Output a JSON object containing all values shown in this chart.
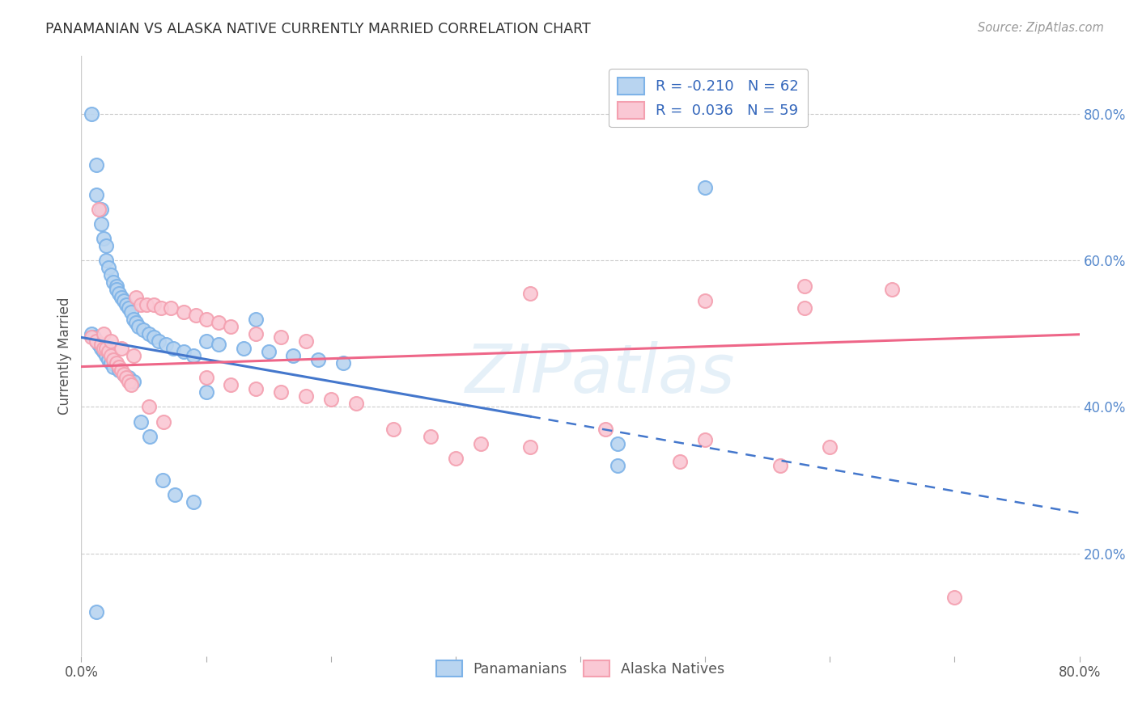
{
  "title": "PANAMANIAN VS ALASKA NATIVE CURRENTLY MARRIED CORRELATION CHART",
  "source": "Source: ZipAtlas.com",
  "ylabel": "Currently Married",
  "xmin": 0.0,
  "xmax": 0.8,
  "ymin": 0.06,
  "ymax": 0.88,
  "legend_blue_label": "R = -0.210   N = 62",
  "legend_pink_label": "R =  0.036   N = 59",
  "blue_color": "#7EB3E8",
  "pink_color": "#F4A0B0",
  "blue_fill": "#B8D4F0",
  "pink_fill": "#FAC8D4",
  "blue_line_color": "#4477CC",
  "pink_line_color": "#EE6688",
  "watermark": "ZIPatlas",
  "blue_line_solid_end": 0.36,
  "blue_line_start_y": 0.495,
  "blue_line_slope": -0.3,
  "pink_line_start_y": 0.455,
  "pink_line_slope": 0.055,
  "blue_x": [
    0.008,
    0.012,
    0.012,
    0.016,
    0.016,
    0.018,
    0.02,
    0.02,
    0.022,
    0.024,
    0.026,
    0.028,
    0.028,
    0.03,
    0.032,
    0.034,
    0.036,
    0.038,
    0.04,
    0.042,
    0.044,
    0.046,
    0.05,
    0.054,
    0.058,
    0.062,
    0.068,
    0.074,
    0.082,
    0.09,
    0.1,
    0.11,
    0.13,
    0.15,
    0.17,
    0.19,
    0.21,
    0.008,
    0.01,
    0.012,
    0.014,
    0.016,
    0.018,
    0.02,
    0.022,
    0.024,
    0.026,
    0.03,
    0.034,
    0.038,
    0.042,
    0.048,
    0.055,
    0.065,
    0.075,
    0.09,
    0.012,
    0.5,
    0.43,
    0.43,
    0.14,
    0.1
  ],
  "blue_y": [
    0.8,
    0.73,
    0.69,
    0.67,
    0.65,
    0.63,
    0.62,
    0.6,
    0.59,
    0.58,
    0.57,
    0.565,
    0.56,
    0.555,
    0.55,
    0.545,
    0.54,
    0.535,
    0.53,
    0.52,
    0.515,
    0.51,
    0.505,
    0.5,
    0.495,
    0.49,
    0.485,
    0.48,
    0.475,
    0.47,
    0.49,
    0.485,
    0.48,
    0.475,
    0.47,
    0.465,
    0.46,
    0.5,
    0.495,
    0.49,
    0.485,
    0.48,
    0.475,
    0.47,
    0.465,
    0.46,
    0.455,
    0.45,
    0.445,
    0.44,
    0.435,
    0.38,
    0.36,
    0.3,
    0.28,
    0.27,
    0.12,
    0.7,
    0.35,
    0.32,
    0.52,
    0.42
  ],
  "pink_x": [
    0.008,
    0.012,
    0.016,
    0.018,
    0.02,
    0.022,
    0.024,
    0.026,
    0.028,
    0.03,
    0.032,
    0.034,
    0.036,
    0.038,
    0.04,
    0.044,
    0.048,
    0.052,
    0.058,
    0.064,
    0.072,
    0.082,
    0.092,
    0.1,
    0.11,
    0.12,
    0.14,
    0.16,
    0.18,
    0.1,
    0.12,
    0.14,
    0.16,
    0.18,
    0.2,
    0.22,
    0.25,
    0.28,
    0.32,
    0.36,
    0.42,
    0.5,
    0.6,
    0.7,
    0.018,
    0.024,
    0.032,
    0.042,
    0.054,
    0.066,
    0.014,
    0.3,
    0.48,
    0.56,
    0.58,
    0.36,
    0.5,
    0.58,
    0.65
  ],
  "pink_y": [
    0.495,
    0.49,
    0.485,
    0.48,
    0.48,
    0.475,
    0.47,
    0.465,
    0.46,
    0.455,
    0.45,
    0.445,
    0.44,
    0.435,
    0.43,
    0.55,
    0.54,
    0.54,
    0.54,
    0.535,
    0.535,
    0.53,
    0.525,
    0.52,
    0.515,
    0.51,
    0.5,
    0.495,
    0.49,
    0.44,
    0.43,
    0.425,
    0.42,
    0.415,
    0.41,
    0.405,
    0.37,
    0.36,
    0.35,
    0.345,
    0.37,
    0.355,
    0.345,
    0.14,
    0.5,
    0.49,
    0.48,
    0.47,
    0.4,
    0.38,
    0.67,
    0.33,
    0.325,
    0.32,
    0.565,
    0.555,
    0.545,
    0.535,
    0.56
  ]
}
